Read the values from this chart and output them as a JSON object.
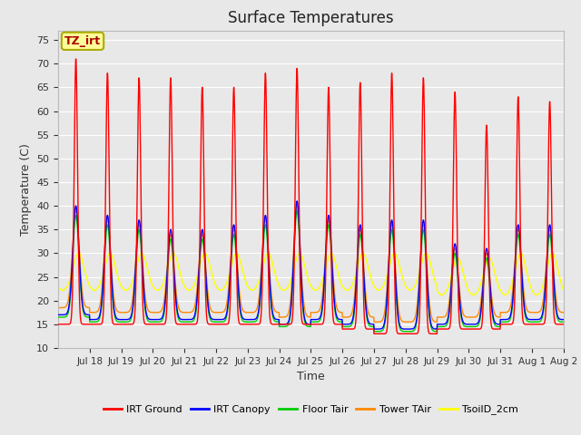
{
  "title": "Surface Temperatures",
  "xlabel": "Time",
  "ylabel": "Temperature (C)",
  "ylim": [
    10,
    77
  ],
  "yticks": [
    10,
    15,
    20,
    25,
    30,
    35,
    40,
    45,
    50,
    55,
    60,
    65,
    70,
    75
  ],
  "xtick_labels": [
    "Jul 18",
    "Jul 19",
    "Jul 20",
    "Jul 21",
    "Jul 22",
    "Jul 23",
    "Jul 24",
    "Jul 25",
    "Jul 26",
    "Jul 27",
    "Jul 28",
    "Jul 29",
    "Jul 30",
    "Jul 31",
    "Aug 1",
    "Aug 2"
  ],
  "annotation_text": "TZ_irt",
  "annotation_color": "#aa0000",
  "annotation_bg": "#ffff99",
  "annotation_border": "#aaaa00",
  "series_colors": {
    "irt_ground": "#ff0000",
    "irt_canopy": "#0000ff",
    "floor_tair": "#00cc00",
    "tower_tair": "#ff8800",
    "tsoild_2cm": "#ffff00"
  },
  "legend_labels": [
    "IRT Ground",
    "IRT Canopy",
    "Floor Tair",
    "Tower TAir",
    "TsoilD_2cm"
  ],
  "legend_colors": [
    "#ff0000",
    "#0000ff",
    "#00cc00",
    "#ff8800",
    "#ffff00"
  ],
  "fig_bg": "#e8e8e8",
  "plot_bg": "#e8e8e8",
  "grid_color": "#ffffff",
  "line_width": 1.0,
  "irt_ground_peaks": [
    71,
    68,
    67,
    67,
    65,
    65,
    68,
    69,
    65,
    66,
    68,
    67,
    64,
    57,
    63,
    62
  ],
  "irt_ground_mins": [
    15,
    15,
    15,
    15,
    15,
    15,
    15,
    15,
    15,
    14,
    13,
    13,
    14,
    14,
    15,
    15
  ],
  "canopy_peaks": [
    40,
    38,
    37,
    35,
    35,
    36,
    38,
    41,
    38,
    36,
    37,
    37,
    32,
    31,
    36,
    36
  ],
  "canopy_mins": [
    17,
    16,
    16,
    16,
    16,
    16,
    16,
    15,
    16,
    15,
    14,
    14,
    15,
    15,
    16,
    16
  ],
  "tsoil_peaks": [
    30,
    30,
    30,
    30,
    30,
    30,
    30,
    30,
    30,
    30,
    30,
    30,
    29,
    29,
    30,
    30
  ],
  "tsoil_mins": [
    22,
    22,
    22,
    22,
    22,
    22,
    22,
    22,
    22,
    22,
    22,
    22,
    21,
    21,
    21,
    21
  ]
}
